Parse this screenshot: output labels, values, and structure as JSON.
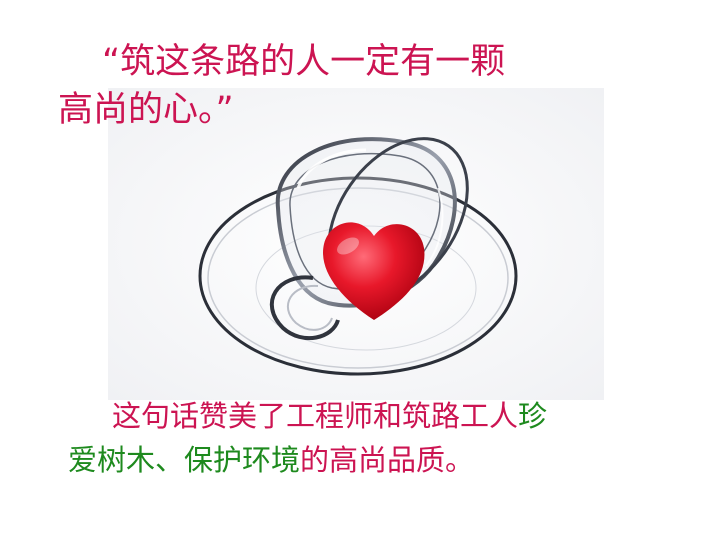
{
  "quote": {
    "line1": "“筑这条路的人一定有一颗",
    "line2": "高尚的心。”"
  },
  "caption": {
    "part1": "这句话赞美了工程师和筑路工人",
    "part2": "珍",
    "part3": "爱树木、保护环境",
    "part4": "的高尚品质。"
  },
  "image": {
    "subject": "heart-in-glass-cup"
  },
  "colors": {
    "quote": "#cc1452",
    "highlight": "#1e8a1e",
    "background": "#ffffff"
  }
}
